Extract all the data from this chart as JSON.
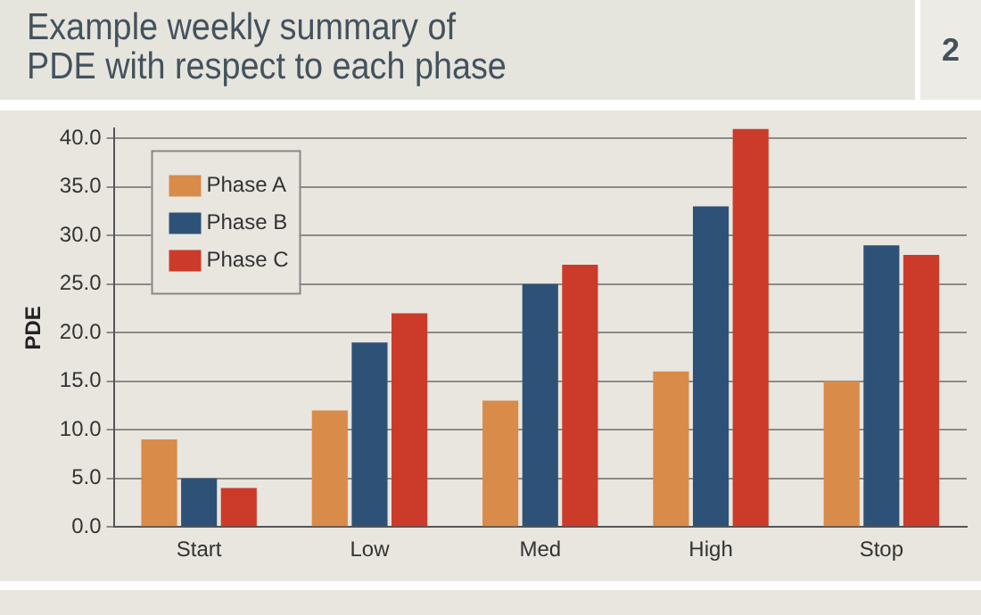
{
  "chart_data": {
    "type": "bar",
    "title": "Example weekly summary of\nPDE with respect to each phase",
    "annotations": [
      "2"
    ],
    "ylabel": "PDE",
    "categories": [
      "Start",
      "Low",
      "Med",
      "High",
      "Stop"
    ],
    "series": [
      {
        "name": "Phase A",
        "color": "#d98b4a",
        "values": [
          9,
          12,
          13,
          16,
          15
        ]
      },
      {
        "name": "Phase B",
        "color": "#2e5277",
        "values": [
          5,
          19,
          25,
          33,
          29
        ]
      },
      {
        "name": "Phase C",
        "color": "#cc3b2a",
        "values": [
          4,
          22,
          27,
          41,
          28
        ]
      }
    ],
    "ylim": [
      0,
      41
    ],
    "yticks": [
      {
        "value": 0,
        "label": "0.0"
      },
      {
        "value": 5,
        "label": "5.0"
      },
      {
        "value": 10,
        "label": "10.0"
      },
      {
        "value": 15,
        "label": "15.0"
      },
      {
        "value": 20,
        "label": "20.0"
      },
      {
        "value": 25,
        "label": "25.0"
      },
      {
        "value": 30,
        "label": "30.0"
      },
      {
        "value": 35,
        "label": "35.0"
      },
      {
        "value": 40,
        "label": "40.0"
      }
    ],
    "grid": "y",
    "legend": "top left"
  }
}
